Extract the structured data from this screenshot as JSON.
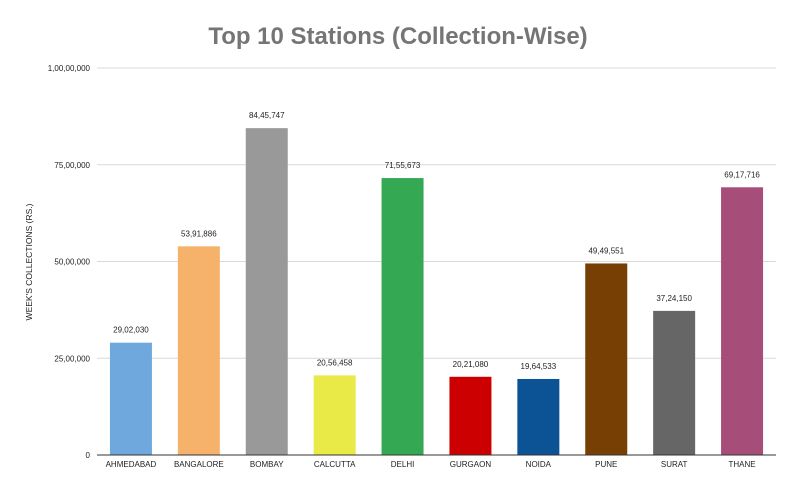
{
  "chart_data": {
    "type": "bar",
    "title": "Top 10 Stations (Collection-Wise)",
    "xlabel": "",
    "ylabel": "WEEK'S COLLECTIONS (RS.)",
    "ylim": [
      0,
      10000000
    ],
    "yticks": [
      0,
      2500000,
      5000000,
      7500000,
      10000000
    ],
    "ytick_labels": [
      "0",
      "25,00,000",
      "50,00,000",
      "75,00,000",
      "1,00,00,000"
    ],
    "grid": true,
    "legend": "none",
    "categories": [
      "AHMEDABAD",
      "BANGALORE",
      "BOMBAY",
      "CALCUTTA",
      "DELHI",
      "GURGAON",
      "NOIDA",
      "PUNE",
      "SURAT",
      "THANE"
    ],
    "values": [
      2902030,
      5391886,
      8445747,
      2056458,
      7155673,
      2021080,
      1964533,
      4949551,
      3724150,
      6917716
    ],
    "value_labels": [
      "29,02,030",
      "53,91,886",
      "84,45,747",
      "20,56,458",
      "71,55,673",
      "20,21,080",
      "19,64,533",
      "49,49,551",
      "37,24,150",
      "69,17,716"
    ],
    "colors": [
      "#6fa8dc",
      "#f6b26b",
      "#999999",
      "#e9e947",
      "#34a853",
      "#cc0000",
      "#0b5394",
      "#783f04",
      "#666666",
      "#a64d79"
    ]
  }
}
